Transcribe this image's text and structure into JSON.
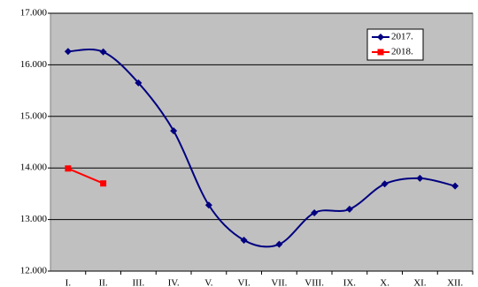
{
  "chart_data": {
    "type": "line",
    "categories": [
      "I.",
      "II.",
      "III.",
      "IV.",
      "V.",
      "VI.",
      "VII.",
      "VIII.",
      "IX.",
      "X.",
      "XI.",
      "XII."
    ],
    "series": [
      {
        "name": "2017.",
        "color": "#000080",
        "marker": "diamond",
        "smooth": true,
        "values": [
          16260,
          16250,
          15650,
          14720,
          13280,
          12600,
          12520,
          13130,
          13200,
          13690,
          13800,
          13650
        ]
      },
      {
        "name": "2018.",
        "color": "#ff0000",
        "marker": "square",
        "smooth": false,
        "values": [
          13990,
          13700,
          null,
          null,
          null,
          null,
          null,
          null,
          null,
          null,
          null,
          null
        ]
      }
    ],
    "ylim": [
      12000,
      17000
    ],
    "yticks": [
      {
        "value": 12000,
        "label": "12.000"
      },
      {
        "value": 13000,
        "label": "13.000"
      },
      {
        "value": 14000,
        "label": "14.000"
      },
      {
        "value": 15000,
        "label": "15.000"
      },
      {
        "value": 16000,
        "label": "16.000"
      },
      {
        "value": 17000,
        "label": "17.000"
      }
    ],
    "grid": true,
    "legend": "top-right"
  }
}
